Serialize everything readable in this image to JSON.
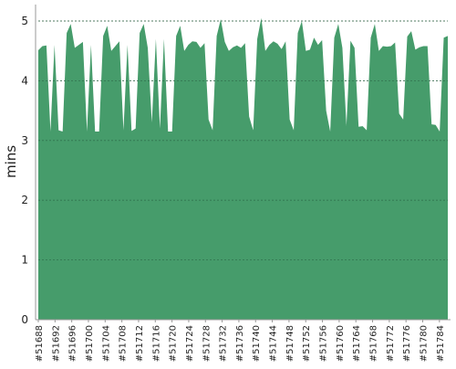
{
  "chart_data": {
    "type": "area",
    "ylabel": "mins",
    "ylim": [
      0,
      5
    ],
    "yticks": [
      0,
      1,
      2,
      3,
      4,
      5
    ],
    "grid": "horizontal-dashed",
    "fill_color": "#469c6b",
    "grid_color": "#777777",
    "x_tick_labels": [
      "#51688",
      "#51692",
      "#51696",
      "#51700",
      "#51704",
      "#51708",
      "#51712",
      "#51716",
      "#51720",
      "#51724",
      "#51728",
      "#51732",
      "#51736",
      "#51740",
      "#51744",
      "#51748",
      "#51752",
      "#51756",
      "#51760",
      "#51764",
      "#51768",
      "#51772",
      "#51776",
      "#51780",
      "#51784"
    ],
    "x_start": 51688,
    "x_end": 51786,
    "x_tick_step": 2,
    "values": [
      4.51,
      4.58,
      4.59,
      3.15,
      4.6,
      3.17,
      3.15,
      4.8,
      4.95,
      4.55,
      4.6,
      4.65,
      3.15,
      4.6,
      3.15,
      3.15,
      4.75,
      4.92,
      4.5,
      4.58,
      4.66,
      3.17,
      4.6,
      3.16,
      3.2,
      4.8,
      4.95,
      4.55,
      3.3,
      4.7,
      3.2,
      4.7,
      3.15,
      3.15,
      4.75,
      4.92,
      4.5,
      4.6,
      4.66,
      4.65,
      4.55,
      4.63,
      3.35,
      3.17,
      4.75,
      5.03,
      4.65,
      4.5,
      4.56,
      4.59,
      4.55,
      4.63,
      3.4,
      3.17,
      4.7,
      5.05,
      4.5,
      4.6,
      4.66,
      4.62,
      4.53,
      4.66,
      3.35,
      3.17,
      4.8,
      5.0,
      4.5,
      4.52,
      4.72,
      4.6,
      4.68,
      3.5,
      3.15,
      4.72,
      4.95,
      4.55,
      3.25,
      4.67,
      4.55,
      3.23,
      3.24,
      3.17,
      4.72,
      4.95,
      4.5,
      4.58,
      4.57,
      4.58,
      4.64,
      3.45,
      3.35,
      4.74,
      4.83,
      4.52,
      4.56,
      4.58,
      4.58,
      3.27,
      3.26,
      3.15,
      4.72,
      4.75
    ]
  }
}
